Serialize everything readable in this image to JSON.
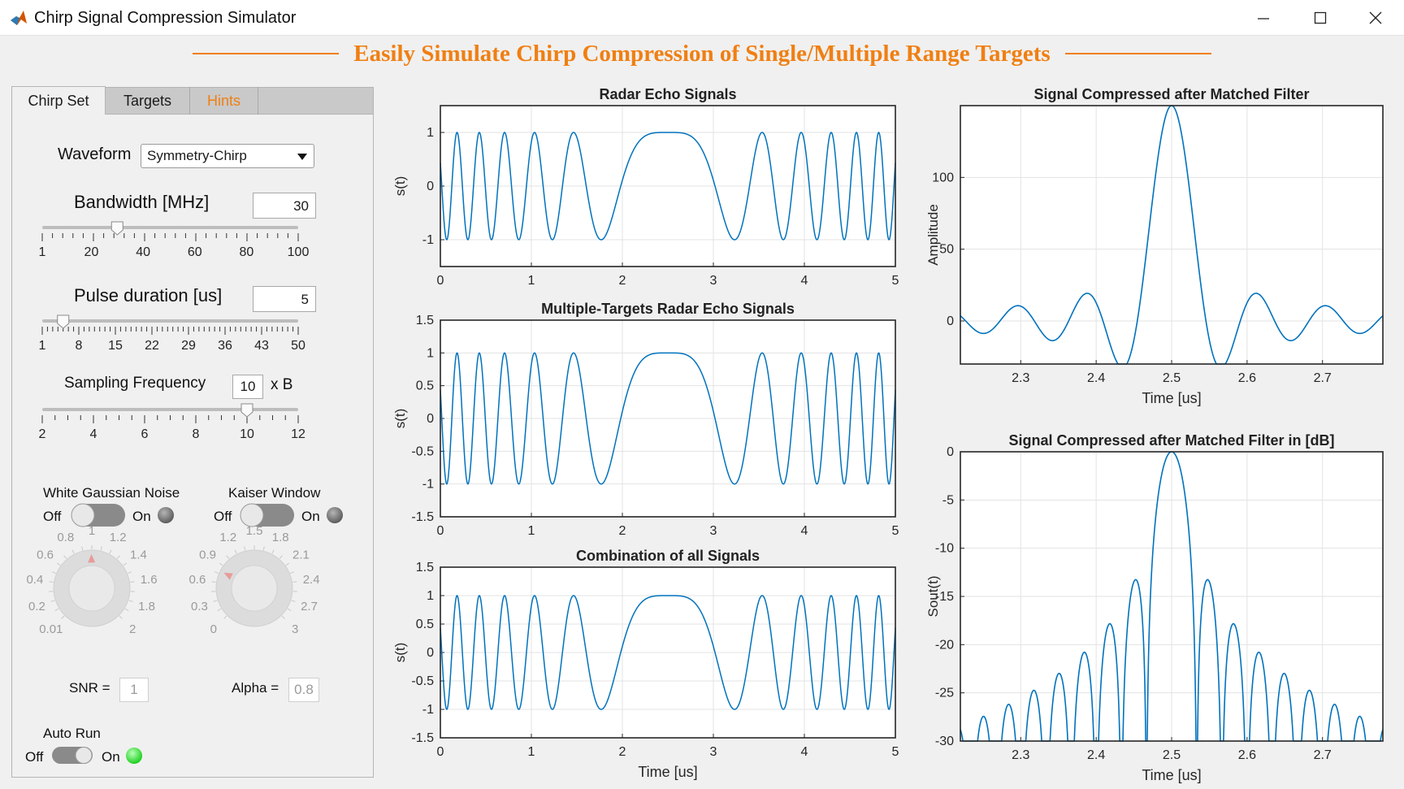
{
  "window": {
    "title": "Chirp Signal Compression Simulator"
  },
  "banner": {
    "text": "Easily Simulate Chirp Compression of Single/Multiple Range Targets"
  },
  "colors": {
    "accent": "#f07f12",
    "signal": "#0072bd",
    "lamp_on": "#22dd22",
    "lamp_off": "#777777"
  },
  "tabs": [
    {
      "label": "Chirp Set",
      "active": true
    },
    {
      "label": "Targets",
      "active": false
    },
    {
      "label": "Hints",
      "active": false,
      "color": "#f07f12"
    }
  ],
  "waveform": {
    "label": "Waveform",
    "value": "Symmetry-Chirp"
  },
  "bandwidth": {
    "label": "Bandwidth [MHz]",
    "value": "30",
    "ticks": [
      "1",
      "20",
      "40",
      "60",
      "80",
      "100"
    ],
    "range": [
      1,
      100
    ],
    "slider": 30
  },
  "pulse": {
    "label": "Pulse duration [us]",
    "value": "5",
    "ticks": [
      "1",
      "8",
      "15",
      "22",
      "29",
      "36",
      "43",
      "50"
    ],
    "range": [
      1,
      50
    ],
    "slider": 5
  },
  "sampling": {
    "label": "Sampling Frequency",
    "value": "10",
    "unit": "x B",
    "ticks": [
      "2",
      "4",
      "6",
      "8",
      "10",
      "12"
    ],
    "range": [
      2,
      12
    ],
    "slider": 10
  },
  "noise": {
    "title": "White Gaussian Noise",
    "off": "Off",
    "on": "On",
    "state": false,
    "knob_labels": [
      "0.01",
      "0.2",
      "0.4",
      "0.6",
      "0.8",
      "1",
      "1.2",
      "1.4",
      "1.6",
      "1.8",
      "2"
    ],
    "knob_value": 1,
    "field_label": "SNR =",
    "field_value": "1"
  },
  "kaiser": {
    "title": "Kaiser Window",
    "off": "Off",
    "on": "On",
    "state": false,
    "knob_labels": [
      "0",
      "0.3",
      "0.6",
      "0.9",
      "1.2",
      "1.5",
      "1.8",
      "2.1",
      "2.4",
      "2.7",
      "3"
    ],
    "knob_value": 0.8,
    "field_label": "Alpha =",
    "field_value": "0.8"
  },
  "autorun": {
    "title": "Auto Run",
    "off": "Off",
    "on": "On",
    "state": true
  },
  "plots": {
    "echo": {
      "title": "Radar Echo Signals",
      "ylabel": "s(t)",
      "xlabel": "",
      "xticks": [
        "0",
        "1",
        "2",
        "3",
        "4",
        "5"
      ],
      "yticks": [
        "-1",
        "0",
        "1"
      ]
    },
    "multi": {
      "title": "Multiple-Targets  Radar Echo Signals",
      "ylabel": "s(t)",
      "xlabel": "",
      "xticks": [
        "0",
        "1",
        "2",
        "3",
        "4",
        "5"
      ],
      "yticks": [
        "-1.5",
        "-1",
        "-0.5",
        "0",
        "0.5",
        "1",
        "1.5"
      ]
    },
    "combo": {
      "title": "Combination of all Signals",
      "ylabel": "s(t)",
      "xlabel": "Time [us]",
      "xticks": [
        "0",
        "1",
        "2",
        "3",
        "4",
        "5"
      ],
      "yticks": [
        "-1.5",
        "-1",
        "-0.5",
        "0",
        "0.5",
        "1",
        "1.5"
      ]
    },
    "comp": {
      "title": "Signal Compressed after Matched Filter",
      "ylabel": "Amplitude",
      "xlabel": "Time [us]",
      "xticks": [
        "2.3",
        "2.4",
        "2.5",
        "2.6",
        "2.7"
      ],
      "yticks": [
        "0",
        "50",
        "100"
      ]
    },
    "compdb": {
      "title": "Signal Compressed after Matched Filter in [dB]",
      "ylabel": "Sout(t)",
      "xlabel": "Time [us]",
      "xticks": [
        "2.3",
        "2.4",
        "2.5",
        "2.6",
        "2.7"
      ],
      "yticks": [
        "-30",
        "-25",
        "-20",
        "-15",
        "-10",
        "-5",
        "0"
      ]
    }
  },
  "chart_data": [
    {
      "type": "line",
      "title": "Radar Echo Signals",
      "xlabel": "",
      "ylabel": "s(t)",
      "xlim": [
        0,
        5
      ],
      "ylim": [
        -1.5,
        1.5
      ],
      "grid": true,
      "series": [
        {
          "function": "cos(pi*B*(t-2.5)^2), symmetric chirp",
          "B_MHz": 30,
          "T_us": 5
        }
      ]
    },
    {
      "type": "line",
      "title": "Multiple-Targets  Radar Echo Signals",
      "xlabel": "",
      "ylabel": "s(t)",
      "xlim": [
        0,
        5
      ],
      "ylim": [
        -1.5,
        1.5
      ],
      "grid": true,
      "series": [
        {
          "function": "cos(pi*B*(t-2.5)^2), symmetric chirp",
          "B_MHz": 30,
          "T_us": 5
        }
      ]
    },
    {
      "type": "line",
      "title": "Combination of all Signals",
      "xlabel": "Time [us]",
      "ylabel": "s(t)",
      "xlim": [
        0,
        5
      ],
      "ylim": [
        -1.5,
        1.5
      ],
      "grid": true,
      "series": [
        {
          "function": "cos(pi*B*(t-2.5)^2), symmetric chirp",
          "B_MHz": 30,
          "T_us": 5
        }
      ]
    },
    {
      "type": "line",
      "title": "Signal Compressed after Matched Filter",
      "xlabel": "Time [us]",
      "ylabel": "Amplitude",
      "xlim": [
        2.22,
        2.78
      ],
      "ylim": [
        -30,
        150
      ],
      "grid": true,
      "series": [
        {
          "function": "sinc mainlobe",
          "peak": 150,
          "peak_x": 2.5,
          "first_null": 0.0455,
          "sidelobe": 20
        }
      ]
    },
    {
      "type": "line",
      "title": "Signal Compressed after Matched Filter in [dB]",
      "xlabel": "Time [us]",
      "ylabel": "Sout(t)",
      "xlim": [
        2.22,
        2.78
      ],
      "ylim": [
        -30,
        0
      ],
      "grid": true,
      "series": [
        {
          "function": "20*log10(|sinc|)",
          "peak_x": 2.5,
          "lobe_width": 0.0333
        }
      ]
    }
  ]
}
